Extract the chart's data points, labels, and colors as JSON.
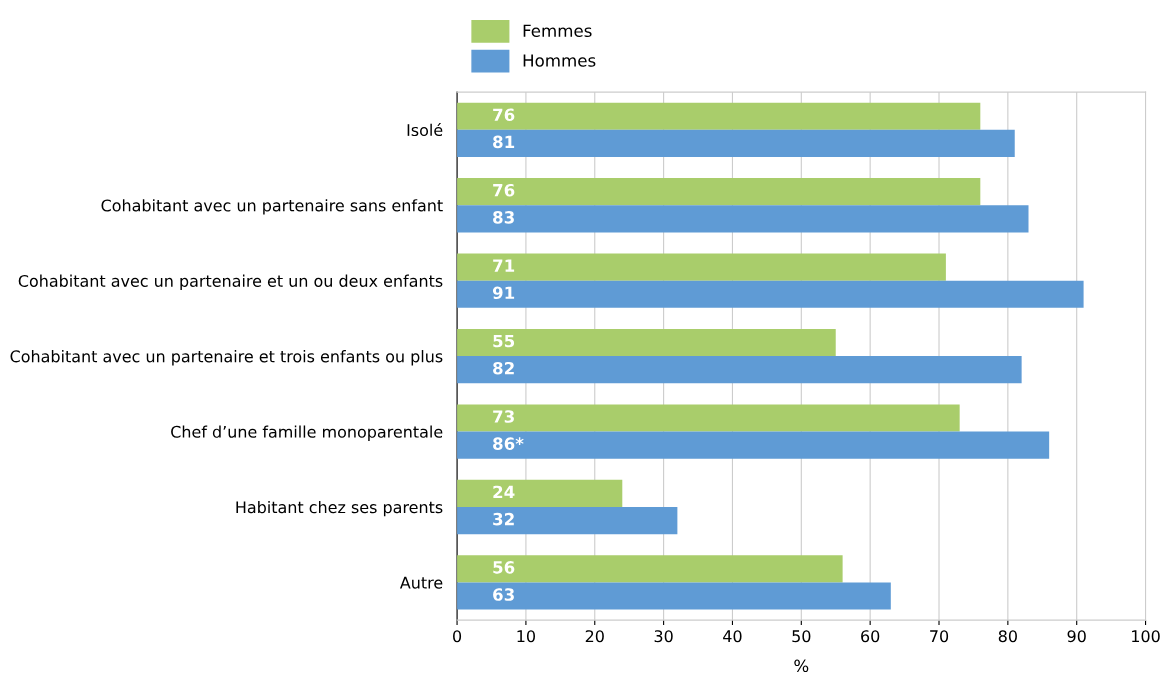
{
  "chart_data": {
    "type": "bar",
    "orientation": "horizontal",
    "xlabel": "%",
    "categories": [
      "Isolé",
      "Cohabitant avec un partenaire sans enfant",
      "Cohabitant avec un partenaire et un ou deux enfants",
      "Cohabitant avec un partenaire et trois enfants ou plus",
      "Chef d’une famille monoparentale",
      "Habitant chez ses parents",
      "Autre"
    ],
    "series": [
      {
        "name": "Femmes",
        "color": "#a9cd6b",
        "values": [
          76,
          76,
          71,
          55,
          73,
          24,
          56
        ],
        "value_labels": [
          "76",
          "76",
          "71",
          "55",
          "73",
          "24",
          "56"
        ]
      },
      {
        "name": "Hommes",
        "color": "#5f9bd5",
        "values": [
          81,
          83,
          91,
          82,
          86,
          32,
          63
        ],
        "value_labels": [
          "81",
          "83",
          "91",
          "82",
          "86*",
          "32",
          "63"
        ]
      }
    ],
    "xlim": [
      0,
      100
    ],
    "xticks": [
      0,
      10,
      20,
      30,
      40,
      50,
      60,
      70,
      80,
      90,
      100
    ],
    "grid": "x",
    "legend": "top"
  }
}
